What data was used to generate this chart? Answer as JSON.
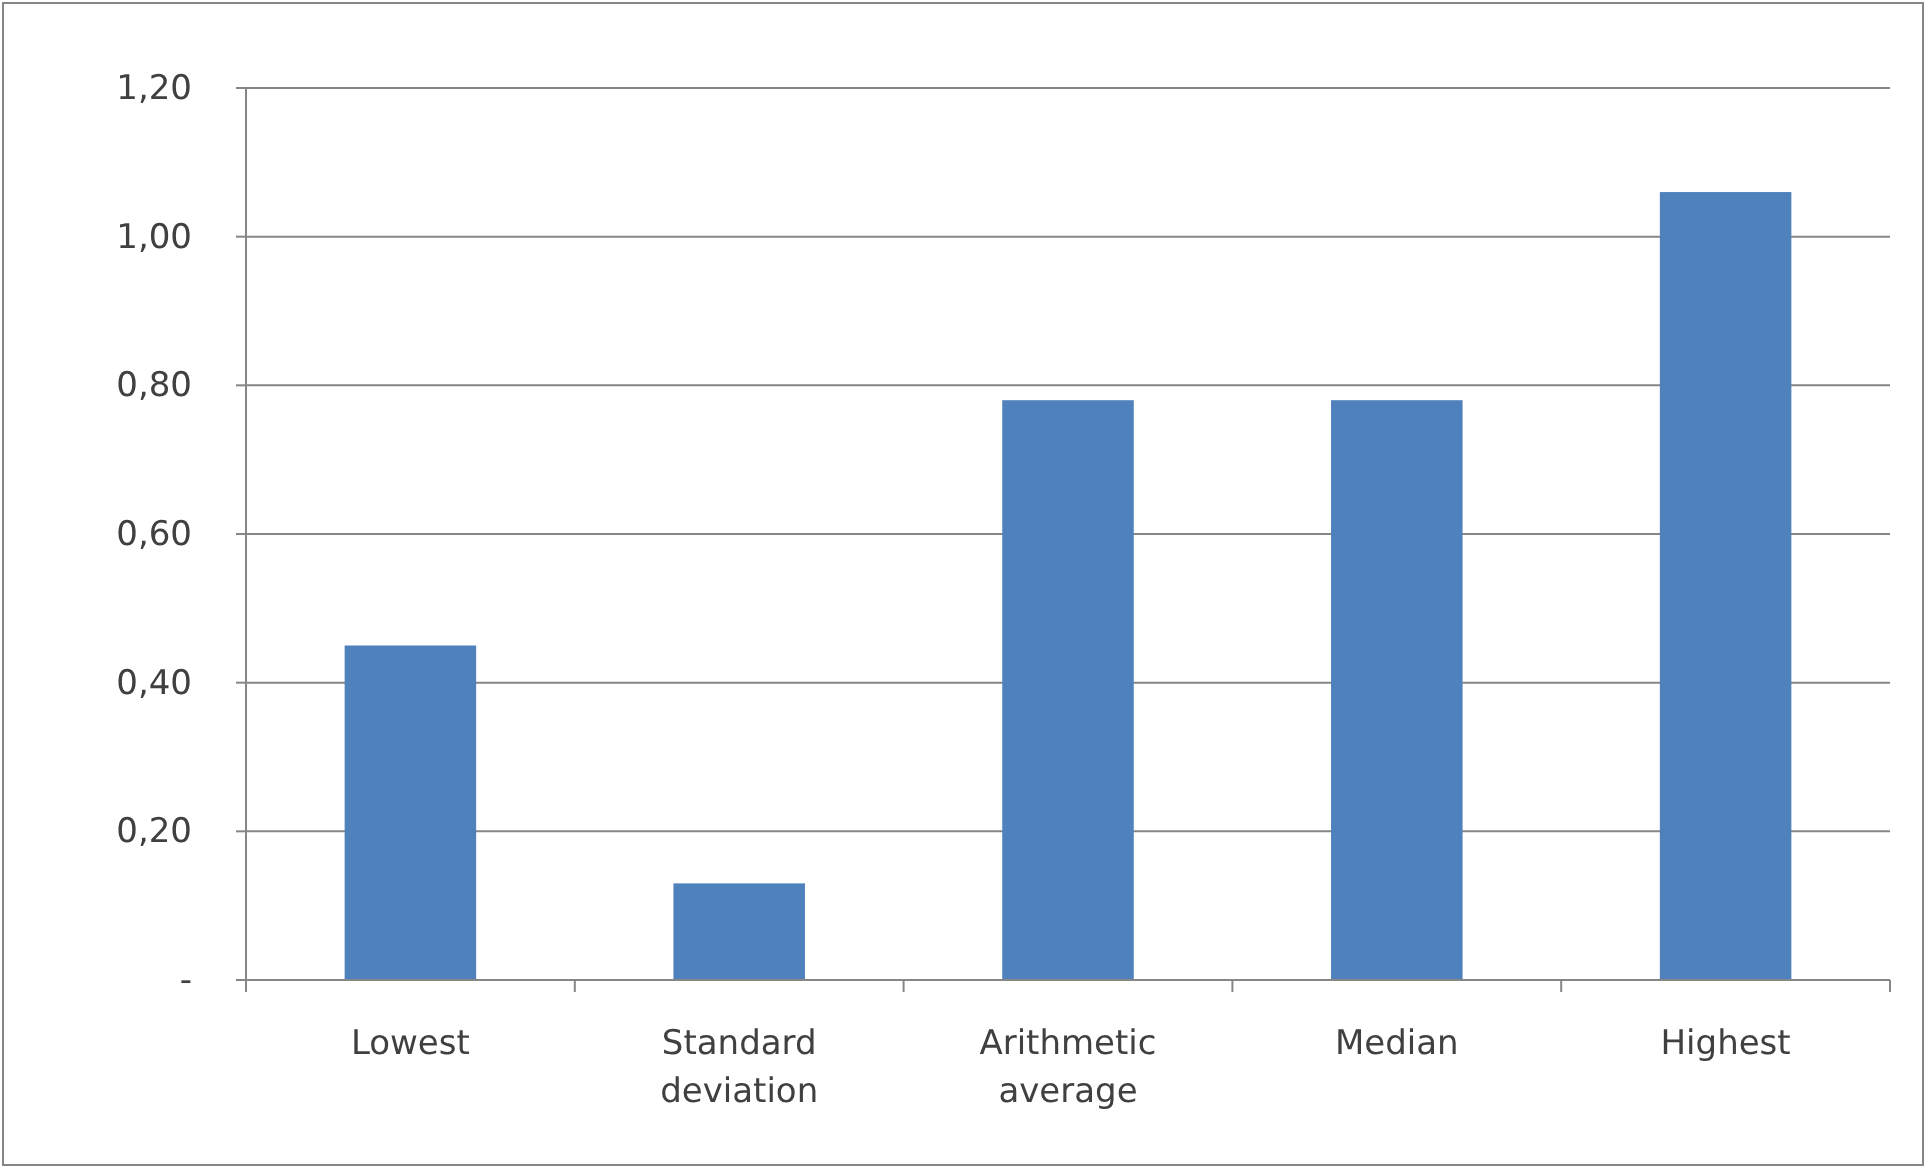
{
  "chart_data": {
    "type": "bar",
    "categories": [
      "Lowest",
      "Standard deviation",
      "Arithmetic average",
      "Median",
      "Highest"
    ],
    "values": [
      0.45,
      0.13,
      0.78,
      0.78,
      1.06
    ],
    "color": "#4f81bd",
    "ylim": [
      0,
      1.2
    ],
    "yticks": [
      {
        "value": 0,
        "label": "-"
      },
      {
        "value": 0.2,
        "label": "0,20"
      },
      {
        "value": 0.4,
        "label": "0,40"
      },
      {
        "value": 0.6,
        "label": "0,60"
      },
      {
        "value": 0.8,
        "label": "0,80"
      },
      {
        "value": 1,
        "label": "1,00"
      },
      {
        "value": 1.2,
        "label": "1,20"
      }
    ],
    "grid": "y"
  }
}
